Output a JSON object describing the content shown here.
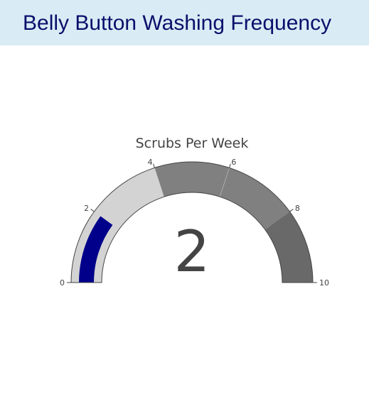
{
  "header": {
    "title": "Belly Button Washing Frequency"
  },
  "chart_data": {
    "type": "gauge",
    "title": "Scrubs Per Week",
    "value": 2,
    "display_value": "2",
    "range": [
      0,
      10
    ],
    "ticks": [
      0,
      2,
      4,
      6,
      8,
      10
    ],
    "tick_labels": [
      "0",
      "2",
      "4",
      "6",
      "8",
      "10"
    ],
    "steps": [
      {
        "range": [
          0,
          4
        ],
        "color": "#d3d3d3"
      },
      {
        "range": [
          4,
          8
        ],
        "color": "#808080"
      },
      {
        "range": [
          8,
          10
        ],
        "color": "#696969"
      }
    ],
    "step_borders": [
      6
    ],
    "bar_color": "#00008b",
    "text_color": "#444444",
    "outline_color": "#444444"
  }
}
